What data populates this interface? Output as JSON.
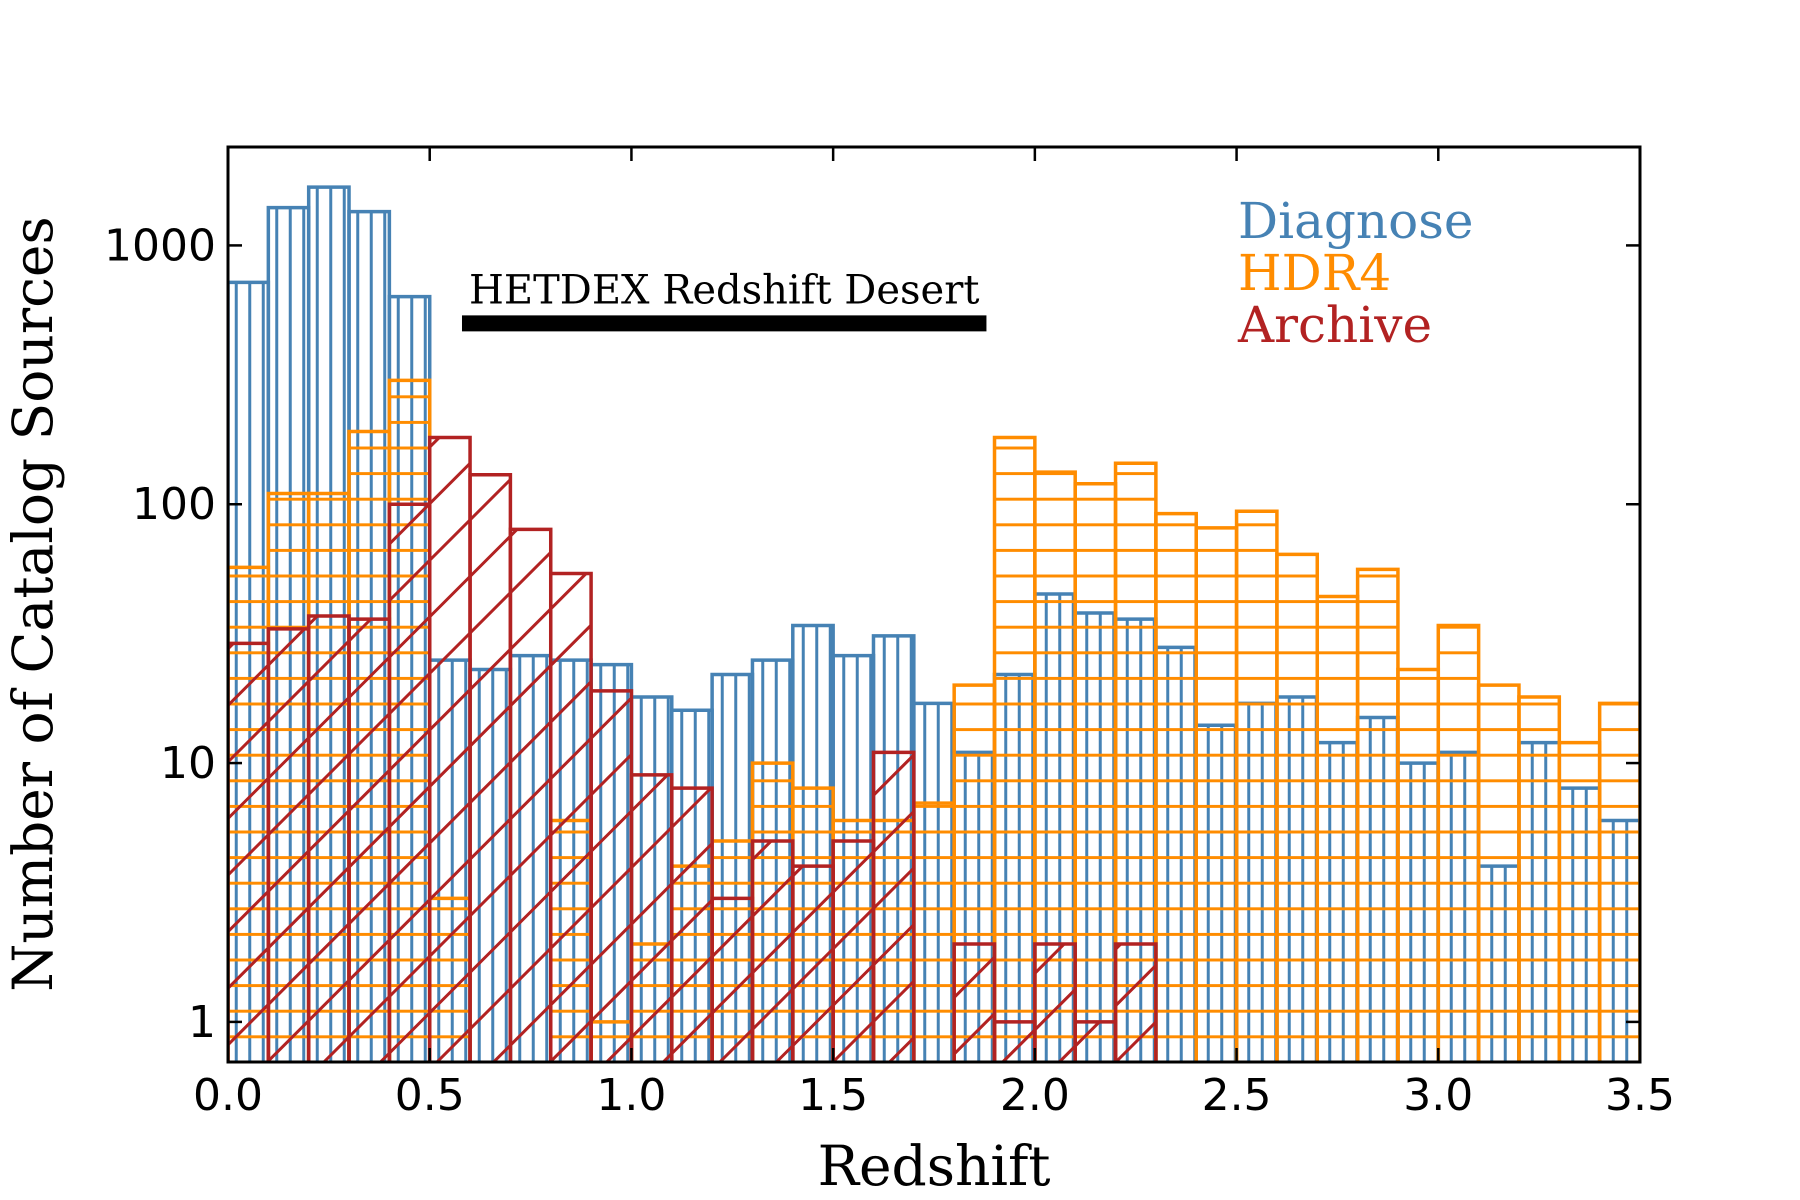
{
  "chart_data": {
    "type": "histogram",
    "xlabel": "Redshift",
    "ylabel": "Number of Catalog Sources",
    "log_y": true,
    "legend": "upper right",
    "bins": [
      0,
      0.1,
      0.2,
      0.3,
      0.4,
      0.5,
      0.6,
      0.7,
      0.8,
      0.9,
      1.0,
      1.1,
      1.2,
      1.3,
      1.4,
      1.5,
      1.6,
      1.7,
      1.8,
      1.9,
      2.0,
      2.1,
      2.2,
      2.3,
      2.4,
      2.5,
      2.6,
      2.7,
      2.8,
      2.9,
      3.0,
      3.1,
      3.2,
      3.3,
      3.4,
      3.5
    ],
    "series": [
      {
        "name": "Diagnose",
        "color": "#4682b4",
        "hatch": "vertical",
        "values": [
          720,
          1400,
          1680,
          1350,
          634,
          25,
          23,
          26,
          25,
          24,
          18,
          16,
          22,
          25,
          34,
          26,
          31,
          17,
          11,
          22,
          45,
          38,
          36,
          28,
          14,
          17,
          18,
          12,
          15,
          10,
          11,
          4,
          12,
          8,
          6
        ]
      },
      {
        "name": "HDR4",
        "color": "#ff8c00",
        "hatch": "horizontal",
        "values": [
          57,
          110,
          110,
          191,
          301,
          3,
          0,
          0,
          6,
          1,
          2,
          4,
          5,
          10,
          8,
          6,
          6,
          7,
          20,
          181,
          133,
          120,
          144,
          92,
          81,
          94,
          64,
          44,
          56,
          23,
          34,
          20,
          18,
          12,
          17
        ]
      },
      {
        "name": "Archive",
        "color": "#b22222",
        "hatch": "diagonal",
        "values": [
          29,
          33,
          37,
          36,
          100,
          181,
          130,
          80,
          54,
          19,
          9,
          8,
          3,
          5,
          4,
          5,
          11,
          0,
          2,
          1,
          2,
          1,
          2,
          0,
          0,
          0,
          0,
          0,
          0,
          0,
          0,
          0,
          0,
          0,
          0
        ]
      }
    ],
    "annotation": {
      "text": "HETDEX Redshift Desert",
      "x": [
        0.58,
        1.88
      ],
      "y": 500
    },
    "xlim": [
      0,
      3.5
    ],
    "ylim": [
      0.7,
      2400
    ],
    "xticks": [
      {
        "value": 0,
        "label": "0.0"
      },
      0.5,
      {
        "value": 1,
        "label": "1.0"
      },
      1.5,
      {
        "value": 2,
        "label": "2.0"
      },
      2.5,
      {
        "value": 3,
        "label": "3.0"
      },
      3.5
    ],
    "yticks": [
      1,
      10,
      100,
      1000
    ]
  }
}
